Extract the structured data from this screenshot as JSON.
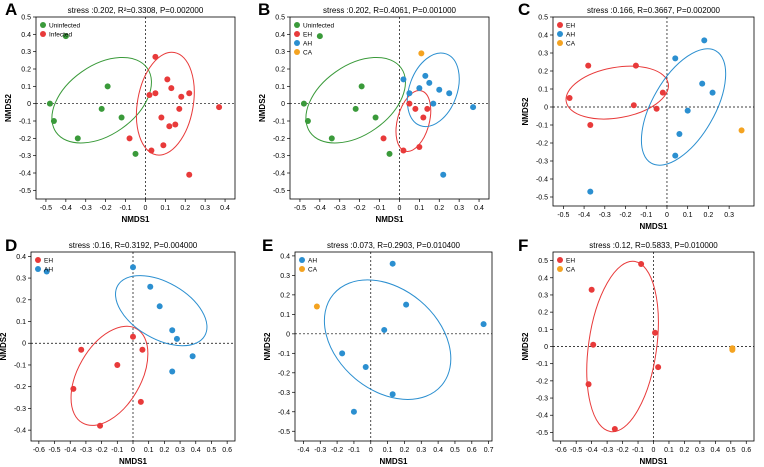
{
  "colors": {
    "uninfected": "#3a9a3a",
    "infected": "#e83a3a",
    "eh": "#e83a3a",
    "ah": "#2b8fd0",
    "ca": "#f4a321"
  },
  "chart_data": [
    {
      "type": "scatter",
      "panel_label": "A",
      "title": "stress :0.202, R²=0.3308, P=0.002000",
      "xlabel": "NMDS1",
      "ylabel": "NMDS2",
      "xlim": [
        -0.55,
        0.45
      ],
      "ylim": [
        -0.55,
        0.5
      ],
      "xticks": [
        -0.5,
        -0.4,
        -0.3,
        -0.2,
        -0.1,
        0,
        0.1,
        0.2,
        0.3,
        0.4
      ],
      "yticks": [
        -0.5,
        -0.4,
        -0.3,
        -0.2,
        -0.1,
        0,
        0.1,
        0.2,
        0.3,
        0.4,
        0.5
      ],
      "legend_position": "top-left",
      "series": [
        {
          "name": "Uninfected",
          "color_key": "uninfected",
          "legend_font": "sans",
          "points": [
            [
              -0.4,
              0.39
            ],
            [
              -0.48,
              0
            ],
            [
              -0.46,
              -0.1
            ],
            [
              -0.34,
              -0.2
            ],
            [
              -0.19,
              0.1
            ],
            [
              -0.22,
              -0.03
            ],
            [
              -0.12,
              -0.08
            ],
            [
              -0.05,
              -0.29
            ]
          ],
          "ellipse": {
            "cx": -0.22,
            "cy": 0.02,
            "rx": 0.28,
            "ry": 0.2,
            "angle_deg": -35
          }
        },
        {
          "name": "Infected",
          "color_key": "infected",
          "legend_font": "sans",
          "points": [
            [
              0.05,
              0.27
            ],
            [
              0.11,
              0.14
            ],
            [
              0.13,
              0.09
            ],
            [
              0.05,
              0.06
            ],
            [
              0.18,
              0.04
            ],
            [
              0.22,
              0.06
            ],
            [
              0.02,
              0.05
            ],
            [
              0.08,
              -0.08
            ],
            [
              0.12,
              -0.13
            ],
            [
              0.15,
              -0.12
            ],
            [
              0.09,
              -0.24
            ],
            [
              0.03,
              -0.27
            ],
            [
              -0.08,
              -0.2
            ],
            [
              0.37,
              -0.02
            ],
            [
              0.22,
              -0.41
            ],
            [
              0.17,
              -0.03
            ]
          ],
          "ellipse": {
            "cx": 0.1,
            "cy": 0.0,
            "rx": 0.14,
            "ry": 0.3,
            "angle_deg": 10
          }
        }
      ]
    },
    {
      "type": "scatter",
      "panel_label": "B",
      "title": "stress :0.202, R=0.4061, P=0.001000",
      "xlabel": "NMDS1",
      "ylabel": "NMDS2",
      "xlim": [
        -0.55,
        0.45
      ],
      "ylim": [
        -0.55,
        0.5
      ],
      "xticks": [
        -0.5,
        -0.4,
        -0.3,
        -0.2,
        -0.1,
        0,
        0.1,
        0.2,
        0.3,
        0.4
      ],
      "yticks": [
        -0.5,
        -0.4,
        -0.3,
        -0.2,
        -0.1,
        0,
        0.1,
        0.2,
        0.3,
        0.4,
        0.5
      ],
      "legend_position": "top-left",
      "series": [
        {
          "name": "Uninfected",
          "color_key": "uninfected",
          "legend_font": "serif",
          "points": [
            [
              -0.4,
              0.39
            ],
            [
              -0.48,
              0
            ],
            [
              -0.46,
              -0.1
            ],
            [
              -0.34,
              -0.2
            ],
            [
              -0.19,
              0.1
            ],
            [
              -0.22,
              -0.03
            ],
            [
              -0.12,
              -0.08
            ],
            [
              -0.05,
              -0.29
            ]
          ],
          "ellipse": {
            "cx": -0.22,
            "cy": 0.02,
            "rx": 0.28,
            "ry": 0.2,
            "angle_deg": -35
          }
        },
        {
          "name": "EH",
          "color_key": "eh",
          "legend_font": "serif",
          "points": [
            [
              0.05,
              0.0
            ],
            [
              0.08,
              -0.03
            ],
            [
              0.12,
              -0.08
            ],
            [
              0.1,
              -0.25
            ],
            [
              0.02,
              -0.27
            ],
            [
              -0.08,
              -0.2
            ],
            [
              0.14,
              -0.03
            ]
          ],
          "ellipse": {
            "cx": 0.07,
            "cy": -0.1,
            "rx": 0.08,
            "ry": 0.18,
            "angle_deg": 15
          }
        },
        {
          "name": "AH",
          "color_key": "ah",
          "legend_font": "serif",
          "points": [
            [
              0.02,
              0.14
            ],
            [
              0.05,
              0.06
            ],
            [
              0.1,
              0.09
            ],
            [
              0.13,
              0.16
            ],
            [
              0.15,
              0.12
            ],
            [
              0.2,
              0.08
            ],
            [
              0.25,
              0.06
            ],
            [
              0.17,
              0.0
            ],
            [
              0.37,
              -0.02
            ],
            [
              0.22,
              -0.41
            ]
          ],
          "ellipse": {
            "cx": 0.17,
            "cy": 0.08,
            "rx": 0.12,
            "ry": 0.22,
            "angle_deg": 20
          }
        },
        {
          "name": "CA",
          "color_key": "ca",
          "legend_font": "serif",
          "points": [
            [
              0.11,
              0.29
            ]
          ]
        }
      ]
    },
    {
      "type": "scatter",
      "panel_label": "C",
      "title": "stress :0.166, R=0.3667, P=0.002000",
      "xlabel": "NMDS1",
      "ylabel": "NMDS2",
      "xlim": [
        -0.55,
        0.42
      ],
      "ylim": [
        -0.55,
        0.5
      ],
      "xticks": [
        -0.5,
        -0.4,
        -0.3,
        -0.2,
        -0.1,
        0,
        0.1,
        0.2,
        0.3
      ],
      "yticks": [
        -0.5,
        -0.4,
        -0.3,
        -0.2,
        -0.1,
        0,
        0.1,
        0.2,
        0.3,
        0.4,
        0.5
      ],
      "legend_position": "top-left",
      "series": [
        {
          "name": "EH",
          "color_key": "eh",
          "legend_font": "serif",
          "points": [
            [
              -0.38,
              0.23
            ],
            [
              -0.47,
              0.05
            ],
            [
              -0.37,
              -0.1
            ],
            [
              -0.15,
              0.23
            ],
            [
              -0.16,
              0.01
            ],
            [
              -0.02,
              0.08
            ],
            [
              -0.05,
              -0.01
            ]
          ],
          "ellipse": {
            "cx": -0.24,
            "cy": 0.08,
            "rx": 0.25,
            "ry": 0.14,
            "angle_deg": -10
          }
        },
        {
          "name": "AH",
          "color_key": "ah",
          "legend_font": "serif",
          "points": [
            [
              0.04,
              0.27
            ],
            [
              0.18,
              0.37
            ],
            [
              0.17,
              0.13
            ],
            [
              0.22,
              0.08
            ],
            [
              0.1,
              -0.02
            ],
            [
              0.06,
              -0.15
            ],
            [
              0.04,
              -0.27
            ],
            [
              -0.37,
              -0.47
            ]
          ],
          "ellipse": {
            "cx": 0.08,
            "cy": 0.0,
            "rx": 0.15,
            "ry": 0.36,
            "angle_deg": 30
          }
        },
        {
          "name": "CA",
          "color_key": "ca",
          "legend_font": "serif",
          "points": [
            [
              0.36,
              -0.13
            ]
          ]
        }
      ]
    },
    {
      "type": "scatter",
      "panel_label": "D",
      "title": "stress :0.16, R=0.3192, P=0.004000",
      "xlabel": "NMDS1",
      "ylabel": "NMDS2",
      "xlim": [
        -0.65,
        0.65
      ],
      "ylim": [
        -0.45,
        0.42
      ],
      "xticks": [
        -0.6,
        -0.5,
        -0.4,
        -0.3,
        -0.2,
        -0.1,
        0,
        0.1,
        0.2,
        0.3,
        0.4,
        0.5,
        0.6
      ],
      "yticks": [
        -0.4,
        -0.3,
        -0.2,
        -0.1,
        0,
        0.1,
        0.2,
        0.3,
        0.4
      ],
      "legend_position": "top-left",
      "series": [
        {
          "name": "EH",
          "color_key": "eh",
          "legend_font": "serif",
          "points": [
            [
              -0.33,
              -0.03
            ],
            [
              -0.38,
              -0.21
            ],
            [
              -0.21,
              -0.38
            ],
            [
              -0.1,
              -0.1
            ],
            [
              0.06,
              -0.03
            ],
            [
              0.05,
              -0.27
            ],
            [
              0.0,
              0.03
            ]
          ],
          "ellipse": {
            "cx": -0.15,
            "cy": -0.15,
            "rx": 0.2,
            "ry": 0.25,
            "angle_deg": 30
          }
        },
        {
          "name": "AH",
          "color_key": "ah",
          "legend_font": "serif",
          "points": [
            [
              -0.55,
              0.33
            ],
            [
              0.0,
              0.35
            ],
            [
              0.11,
              0.26
            ],
            [
              0.17,
              0.17
            ],
            [
              0.25,
              0.06
            ],
            [
              0.28,
              0.02
            ],
            [
              0.38,
              -0.06
            ],
            [
              0.25,
              -0.13
            ]
          ],
          "ellipse": {
            "cx": 0.18,
            "cy": 0.15,
            "rx": 0.32,
            "ry": 0.13,
            "angle_deg": 30
          }
        }
      ]
    },
    {
      "type": "scatter",
      "panel_label": "E",
      "title": "stress :0.073, R=0.2903, P=0.010400",
      "xlabel": "NMDS1",
      "ylabel": "NMDS2",
      "xlim": [
        -0.45,
        0.72
      ],
      "ylim": [
        -0.55,
        0.42
      ],
      "xticks": [
        -0.4,
        -0.3,
        -0.2,
        -0.1,
        0,
        0.1,
        0.2,
        0.3,
        0.4,
        0.5,
        0.6,
        0.7
      ],
      "yticks": [
        -0.5,
        -0.4,
        -0.3,
        -0.2,
        -0.1,
        0,
        0.1,
        0.2,
        0.3,
        0.4
      ],
      "legend_position": "top-left",
      "series": [
        {
          "name": "AH",
          "color_key": "ah",
          "legend_font": "serif",
          "points": [
            [
              0.13,
              0.36
            ],
            [
              0.21,
              0.15
            ],
            [
              0.08,
              0.02
            ],
            [
              -0.17,
              -0.1
            ],
            [
              -0.03,
              -0.17
            ],
            [
              0.13,
              -0.31
            ],
            [
              -0.1,
              -0.4
            ],
            [
              0.67,
              0.05
            ]
          ],
          "ellipse": {
            "cx": 0.1,
            "cy": -0.03,
            "rx": 0.42,
            "ry": 0.26,
            "angle_deg": 40
          }
        },
        {
          "name": "CA",
          "color_key": "ca",
          "legend_font": "serif",
          "points": [
            [
              -0.32,
              0.14
            ]
          ]
        }
      ]
    },
    {
      "type": "scatter",
      "panel_label": "F",
      "title": "stress :0.12, R=0.5833, P=0.010000",
      "xlabel": "NMDS1",
      "ylabel": "NMDS2",
      "xlim": [
        -0.65,
        0.65
      ],
      "ylim": [
        -0.55,
        0.55
      ],
      "xticks": [
        -0.6,
        -0.5,
        -0.4,
        -0.3,
        -0.2,
        -0.1,
        0,
        0.1,
        0.2,
        0.3,
        0.4,
        0.5,
        0.6
      ],
      "yticks": [
        -0.5,
        -0.4,
        -0.3,
        -0.2,
        -0.1,
        0,
        0.1,
        0.2,
        0.3,
        0.4,
        0.5
      ],
      "legend_position": "top-left",
      "series": [
        {
          "name": "EH",
          "color_key": "eh",
          "legend_font": "serif",
          "points": [
            [
              -0.08,
              0.48
            ],
            [
              -0.4,
              0.33
            ],
            [
              -0.39,
              0.01
            ],
            [
              -0.42,
              -0.22
            ],
            [
              -0.25,
              -0.48
            ],
            [
              0.01,
              0.08
            ],
            [
              0.03,
              -0.12
            ]
          ],
          "ellipse": {
            "cx": -0.2,
            "cy": 0.0,
            "rx": 0.22,
            "ry": 0.5,
            "angle_deg": 8
          }
        },
        {
          "name": "CA",
          "color_key": "ca",
          "legend_font": "serif",
          "points": [
            [
              0.51,
              -0.01
            ],
            [
              0.51,
              -0.02
            ]
          ]
        }
      ]
    }
  ]
}
